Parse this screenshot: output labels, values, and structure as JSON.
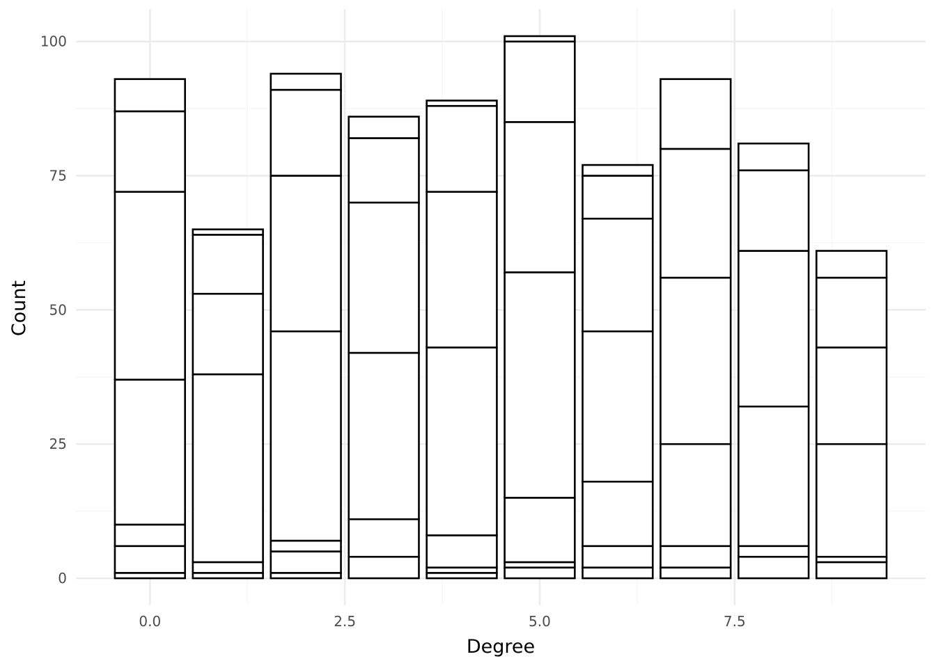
{
  "chart_data": {
    "type": "bar",
    "stacked": true,
    "title": "",
    "xlabel": "Degree",
    "ylabel": "Count",
    "x": [
      0,
      1,
      2,
      3,
      4,
      5,
      6,
      7,
      8,
      9
    ],
    "segment_boundaries": [
      [
        0,
        1,
        6,
        10,
        37,
        72,
        87,
        93
      ],
      [
        0,
        1,
        3,
        38,
        53,
        64,
        65
      ],
      [
        0,
        1,
        5,
        7,
        46,
        75,
        91,
        94
      ],
      [
        0,
        4,
        11,
        42,
        70,
        82,
        86
      ],
      [
        0,
        1,
        2,
        8,
        43,
        72,
        88,
        89
      ],
      [
        0,
        2,
        3,
        15,
        57,
        85,
        100,
        101
      ],
      [
        0,
        2,
        6,
        18,
        46,
        67,
        75,
        77
      ],
      [
        0,
        2,
        6,
        25,
        56,
        80,
        93
      ],
      [
        0,
        4,
        6,
        32,
        61,
        76,
        81
      ],
      [
        0,
        3,
        4,
        25,
        43,
        56,
        61
      ]
    ],
    "totals": [
      93,
      65,
      94,
      86,
      89,
      101,
      77,
      93,
      81,
      61
    ],
    "xlim": [
      -0.95,
      9.95
    ],
    "ylim": [
      -5.05,
      106.05
    ],
    "x_ticks": [
      0,
      2.5,
      5,
      7.5
    ],
    "x_tick_labels": [
      "0.0",
      "2.5",
      "5.0",
      "7.5"
    ],
    "y_ticks": [
      0,
      25,
      50,
      75,
      100
    ],
    "y_tick_labels": [
      "0",
      "25",
      "50",
      "75",
      "100"
    ],
    "bar_width": 0.9,
    "grid": true,
    "legend": "none",
    "colors": {
      "bar_fill": "#ffffff",
      "bar_stroke": "#000000",
      "grid_major": "#ebebeb",
      "grid_minor": "#f5f5f5",
      "tick_text": "#4d4d4d",
      "title_text": "#000000"
    }
  }
}
